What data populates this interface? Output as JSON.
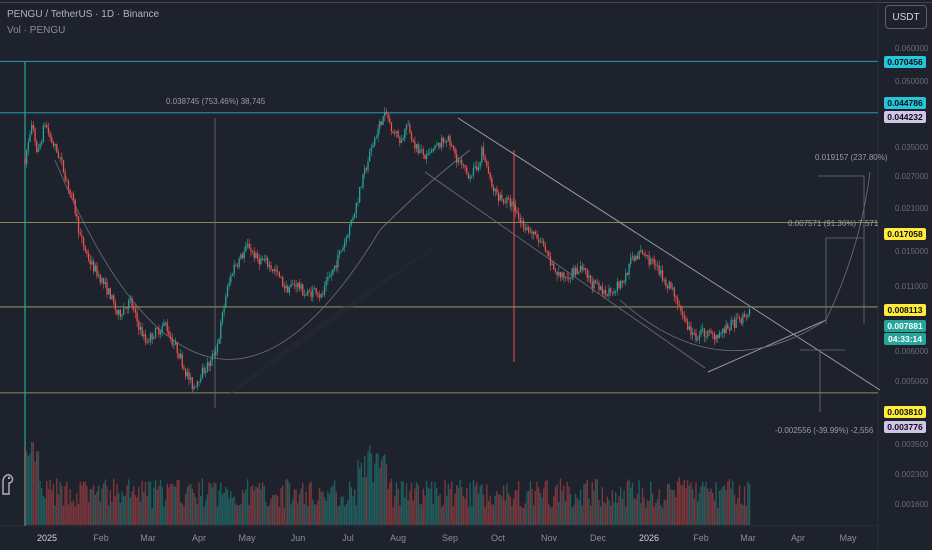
{
  "header": {
    "title": "PENGU / TetherUS · 1D · Binance",
    "volume_label": "Vol · PENGU"
  },
  "currency_button": "USDT",
  "price_axis": {
    "ticks": [
      "0.060000",
      "0.050000",
      "0.035000",
      "0.027000",
      "0.021000",
      "0.015000",
      "0.011000",
      "0.006000",
      "0.005000",
      "0.003500",
      "0.002300",
      "0.001600"
    ]
  },
  "price_labels": [
    {
      "text": "0.070456",
      "bg": "#26c6da",
      "fg": "#0b0e14"
    },
    {
      "text": "0.044786",
      "bg": "#26c6da",
      "fg": "#0b0e14"
    },
    {
      "text": "0.044232",
      "bg": "#d1c4e9",
      "fg": "#0b0e14"
    },
    {
      "text": "0.017058",
      "bg": "#ffeb3b",
      "fg": "#0b0e14"
    },
    {
      "text": "0.008113",
      "bg": "#ffeb3b",
      "fg": "#0b0e14"
    },
    {
      "text": "0.007881",
      "bg": "#26a69a",
      "fg": "#ffffff"
    },
    {
      "text": "04:33:14",
      "bg": "#26a69a",
      "fg": "#ffffff"
    },
    {
      "text": "0.003810",
      "bg": "#ffeb3b",
      "fg": "#0b0e14"
    },
    {
      "text": "0.003776",
      "bg": "#d1c4e9",
      "fg": "#0b0e14"
    }
  ],
  "time_axis": [
    "2025",
    "Feb",
    "Mar",
    "Apr",
    "May",
    "Jun",
    "Jul",
    "Aug",
    "Sep",
    "Oct",
    "Nov",
    "Dec",
    "2026",
    "Feb",
    "Mar",
    "Apr",
    "May"
  ],
  "annotations": {
    "rally_measure": "0.038745 (753.46%) 38,745",
    "target_one": "0.007571 (91.36%) 7,571",
    "target_two": "0.019157 (237.80%)",
    "downside": "-0.002556 (-39.99%) -2,556"
  },
  "colors": {
    "background": "#1e222d",
    "up": "#26a69a",
    "down": "#ef5350",
    "level_cyan": "#26c6da",
    "level_yellow": "#c8c07a",
    "trendline": "#9598a1"
  },
  "chart_data": {
    "type": "candlestick",
    "symbol": "PENGU / TetherUS",
    "interval": "1D",
    "exchange": "Binance",
    "y_scale": "log",
    "ylim": [
      0.003,
      0.085
    ],
    "months": [
      "2025",
      "Feb",
      "Mar",
      "Apr",
      "May",
      "Jun",
      "Jul",
      "Aug",
      "Sep",
      "Oct",
      "Nov",
      "Dec",
      "2026",
      "Feb",
      "Mar",
      "Apr",
      "May"
    ],
    "horizontal_levels": [
      0.070456,
      0.044786,
      0.017058,
      0.008113,
      0.00381
    ],
    "last_price": 0.007881,
    "countdown": "04:33:14",
    "close_path": [
      [
        0.0,
        0.03
      ],
      [
        0.15,
        0.04
      ],
      [
        0.25,
        0.031
      ],
      [
        0.4,
        0.041
      ],
      [
        0.5,
        0.036
      ],
      [
        0.7,
        0.03
      ],
      [
        0.85,
        0.024
      ],
      [
        1.0,
        0.019
      ],
      [
        1.1,
        0.015
      ],
      [
        1.3,
        0.012
      ],
      [
        1.5,
        0.0105
      ],
      [
        1.7,
        0.009
      ],
      [
        1.85,
        0.0075
      ],
      [
        2.0,
        0.0082
      ],
      [
        2.1,
        0.0085
      ],
      [
        2.25,
        0.007
      ],
      [
        2.4,
        0.006
      ],
      [
        2.6,
        0.0065
      ],
      [
        2.8,
        0.007
      ],
      [
        2.9,
        0.0062
      ],
      [
        3.05,
        0.0055
      ],
      [
        3.2,
        0.0046
      ],
      [
        3.35,
        0.004
      ],
      [
        3.5,
        0.0045
      ],
      [
        3.7,
        0.005
      ],
      [
        3.85,
        0.006
      ],
      [
        4.0,
        0.009
      ],
      [
        4.15,
        0.0115
      ],
      [
        4.3,
        0.0125
      ],
      [
        4.45,
        0.014
      ],
      [
        4.6,
        0.0125
      ],
      [
        4.8,
        0.012
      ],
      [
        5.0,
        0.011
      ],
      [
        5.2,
        0.0095
      ],
      [
        5.4,
        0.01
      ],
      [
        5.6,
        0.009
      ],
      [
        5.8,
        0.0095
      ],
      [
        5.9,
        0.0088
      ],
      [
        6.0,
        0.0098
      ],
      [
        6.2,
        0.012
      ],
      [
        6.4,
        0.015
      ],
      [
        6.6,
        0.02
      ],
      [
        6.8,
        0.028
      ],
      [
        6.95,
        0.035
      ],
      [
        7.1,
        0.042
      ],
      [
        7.2,
        0.044
      ],
      [
        7.35,
        0.038
      ],
      [
        7.5,
        0.035
      ],
      [
        7.6,
        0.04
      ],
      [
        7.8,
        0.033
      ],
      [
        8.0,
        0.03
      ],
      [
        8.2,
        0.033
      ],
      [
        8.4,
        0.036
      ],
      [
        8.5,
        0.033
      ],
      [
        8.65,
        0.029
      ],
      [
        8.8,
        0.026
      ],
      [
        9.0,
        0.027
      ],
      [
        9.1,
        0.032
      ],
      [
        9.2,
        0.028
      ],
      [
        9.3,
        0.023
      ],
      [
        9.5,
        0.021
      ],
      [
        9.7,
        0.02
      ],
      [
        9.9,
        0.017
      ],
      [
        10.1,
        0.0155
      ],
      [
        10.3,
        0.014
      ],
      [
        10.5,
        0.0115
      ],
      [
        10.7,
        0.0105
      ],
      [
        10.9,
        0.011
      ],
      [
        11.1,
        0.0112
      ],
      [
        11.3,
        0.01
      ],
      [
        11.5,
        0.0092
      ],
      [
        11.7,
        0.0095
      ],
      [
        11.9,
        0.01
      ],
      [
        12.1,
        0.0125
      ],
      [
        12.3,
        0.013
      ],
      [
        12.5,
        0.012
      ],
      [
        12.7,
        0.0105
      ],
      [
        12.9,
        0.0095
      ],
      [
        13.0,
        0.0085
      ],
      [
        13.2,
        0.0068
      ],
      [
        13.35,
        0.0062
      ],
      [
        13.5,
        0.0065
      ],
      [
        13.7,
        0.0063
      ],
      [
        13.9,
        0.0065
      ],
      [
        14.1,
        0.007
      ],
      [
        14.3,
        0.0073
      ],
      [
        14.45,
        0.0079
      ]
    ],
    "volume_ylim": [
      0,
      1
    ]
  }
}
